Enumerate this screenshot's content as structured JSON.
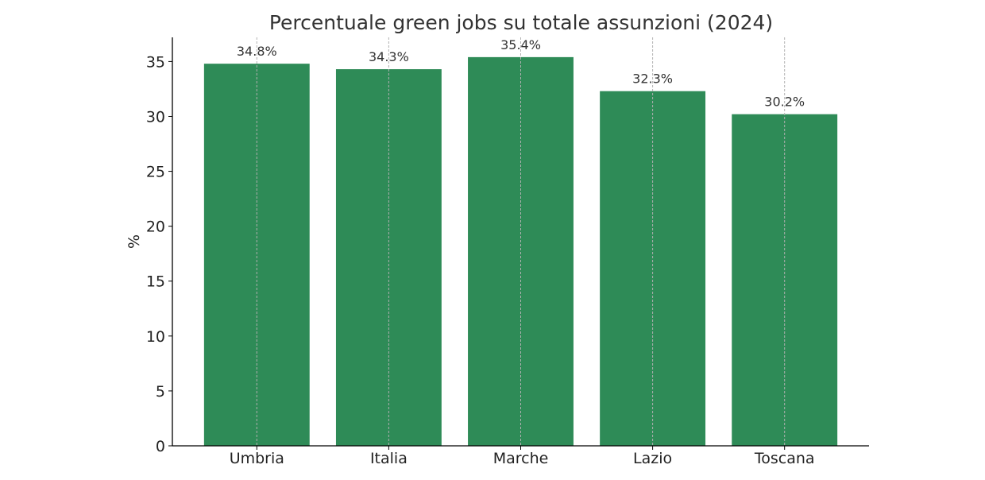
{
  "chart_data": {
    "type": "bar",
    "title": "Percentuale green jobs su totale assunzioni (2024)",
    "xlabel": "",
    "ylabel": "%",
    "categories": [
      "Umbria",
      "Italia",
      "Marche",
      "Lazio",
      "Toscana"
    ],
    "values": [
      34.8,
      34.3,
      35.4,
      32.3,
      30.2
    ],
    "data_labels": [
      "34.8%",
      "34.3%",
      "35.4%",
      "32.3%",
      "30.2%"
    ],
    "ylim": [
      0,
      37.2
    ],
    "yticks": [
      0,
      5,
      10,
      15,
      20,
      25,
      30,
      35
    ],
    "grid": "x dashed",
    "bar_color": "#2e8b57",
    "legend": "none"
  }
}
